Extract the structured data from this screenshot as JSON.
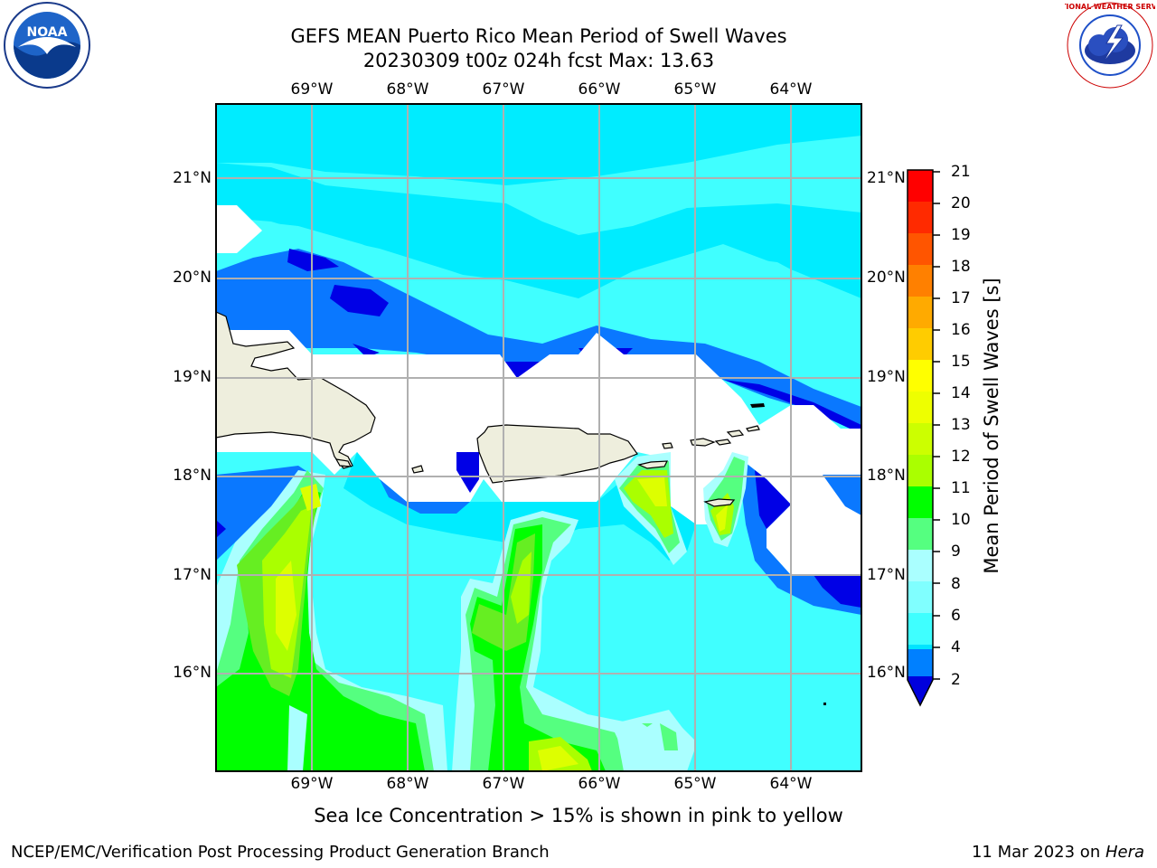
{
  "title": {
    "line1": "GEFS MEAN Puerto Rico Mean Period of Swell Waves",
    "line2": "20230309 t00z 024h fcst   Max: 13.63"
  },
  "map": {
    "longitude_labels": [
      "69°W",
      "68°W",
      "67°W",
      "66°W",
      "65°W",
      "64°W"
    ],
    "latitude_labels": [
      "21°N",
      "20°N",
      "19°N",
      "18°N",
      "17°N",
      "16°N"
    ],
    "landmasses": [
      "Hispaniola",
      "Puerto Rico",
      "Virgin Islands"
    ]
  },
  "colorbar": {
    "label": "Mean Period of Swell Waves [s]",
    "ticks": [
      "21",
      "20",
      "19",
      "18",
      "17",
      "16",
      "15",
      "14",
      "13",
      "12",
      "11",
      "10",
      "9",
      "8",
      "6",
      "4",
      "2"
    ],
    "colors": [
      "#0000dd",
      "#0080ff",
      "#00e5ff",
      "#3fffff",
      "#80ffff",
      "#aaffff",
      "#55ff80",
      "#00ff00",
      "#55ee00",
      "#aaff00",
      "#ccff00",
      "#eeff00",
      "#ffff00",
      "#ffcc00",
      "#ffaa00",
      "#ff8000",
      "#ff5500",
      "#ff2a00",
      "#ff0000"
    ]
  },
  "subtitle": "Sea Ice Concentration > 15% is shown in pink to yellow",
  "footer": {
    "left": "NCEP/EMC/Verification Post Processing Product Generation Branch",
    "right_prefix": "11 Mar 2023 on ",
    "right_host": "Hera"
  },
  "logos": {
    "noaa_text": "NOAA",
    "nws_text": "NATIONAL WEATHER SERVICE"
  }
}
